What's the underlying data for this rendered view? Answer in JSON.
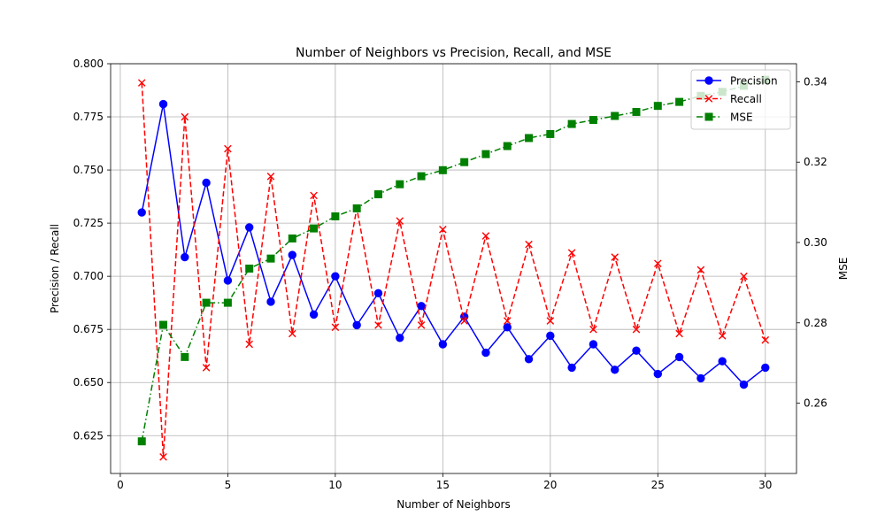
{
  "chart_data": {
    "type": "line",
    "title": "Number of Neighbors vs Precision, Recall, and MSE",
    "xlabel": "Number of Neighbors",
    "ylabel_left": "Precision / Recall",
    "ylabel_right": "MSE",
    "x": [
      1,
      2,
      3,
      4,
      5,
      6,
      7,
      8,
      9,
      10,
      11,
      12,
      13,
      14,
      15,
      16,
      17,
      18,
      19,
      20,
      21,
      22,
      23,
      24,
      25,
      26,
      27,
      28,
      29,
      30
    ],
    "xlim": [
      -0.45,
      31.45
    ],
    "xticks": [
      0,
      5,
      10,
      15,
      20,
      25,
      30
    ],
    "ylim_left": [
      0.6072,
      0.8
    ],
    "yticks_left": [
      "0.625",
      "0.650",
      "0.675",
      "0.700",
      "0.725",
      "0.750",
      "0.775",
      "0.800"
    ],
    "ylim_right": [
      0.2425,
      0.3445
    ],
    "yticks_right": [
      "0.26",
      "0.28",
      "0.30",
      "0.32",
      "0.34"
    ],
    "grid": true,
    "legend_position": "top-right",
    "series": [
      {
        "name": "Precision",
        "axis": "left",
        "color": "#0000ff",
        "line_style": "solid",
        "marker": "circle",
        "values": [
          0.73,
          0.781,
          0.709,
          0.744,
          0.698,
          0.723,
          0.688,
          0.71,
          0.682,
          0.7,
          0.677,
          0.692,
          0.671,
          0.686,
          0.668,
          0.681,
          0.664,
          0.676,
          0.661,
          0.672,
          0.657,
          0.668,
          0.656,
          0.665,
          0.654,
          0.662,
          0.652,
          0.66,
          0.649,
          0.657
        ]
      },
      {
        "name": "Recall",
        "axis": "left",
        "color": "#ff0000",
        "line_style": "dashed",
        "marker": "x",
        "values": [
          0.791,
          0.615,
          0.775,
          0.657,
          0.76,
          0.668,
          0.747,
          0.673,
          0.738,
          0.676,
          0.732,
          0.677,
          0.726,
          0.677,
          0.722,
          0.679,
          0.719,
          0.679,
          0.715,
          0.679,
          0.711,
          0.675,
          0.709,
          0.675,
          0.706,
          0.673,
          0.703,
          0.672,
          0.7,
          0.67
        ]
      },
      {
        "name": "MSE",
        "axis": "right",
        "color": "#008000",
        "line_style": "dashdot",
        "marker": "square",
        "values": [
          0.2505,
          0.2795,
          0.2715,
          0.285,
          0.285,
          0.2935,
          0.296,
          0.301,
          0.3035,
          0.3065,
          0.3085,
          0.312,
          0.3145,
          0.3165,
          0.318,
          0.32,
          0.322,
          0.324,
          0.326,
          0.327,
          0.3295,
          0.3305,
          0.3315,
          0.3325,
          0.334,
          0.335,
          0.3365,
          0.3375,
          0.339,
          0.3405
        ]
      }
    ]
  }
}
